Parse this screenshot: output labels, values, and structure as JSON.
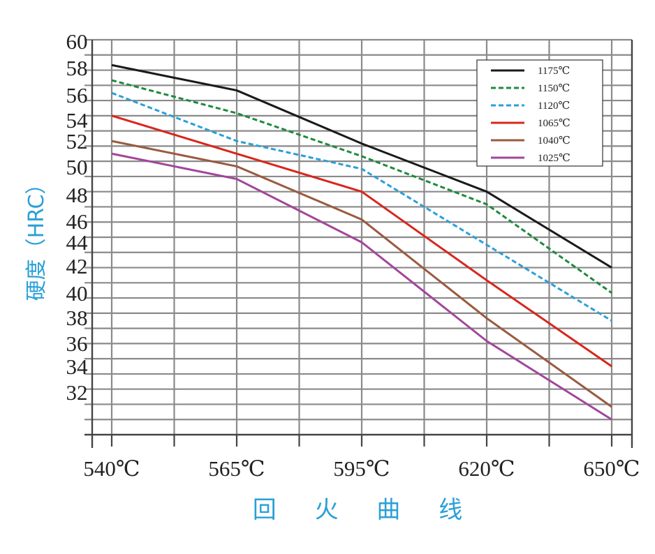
{
  "chart_data": {
    "type": "line",
    "xlabel": "回 火 曲 线",
    "ylabel": "硬度（HRC）",
    "categories": [
      "540℃",
      "565℃",
      "595℃",
      "620℃",
      "650℃"
    ],
    "y_ticks": [
      "60",
      "58",
      "56",
      "54",
      "52",
      "50",
      "48",
      "46",
      "44",
      "42",
      "40",
      "38",
      "36",
      "34",
      "32"
    ],
    "ylim": [
      28.8,
      60
    ],
    "grid": true,
    "legend_position": "top-right",
    "series": [
      {
        "name": "1175℃",
        "color": "#1a1a1a",
        "dash": "solid",
        "values": [
          58.0,
          56.0,
          51.8,
          48.0,
          42.0
        ]
      },
      {
        "name": "1150℃",
        "color": "#1e8a3e",
        "dash": "dashed",
        "values": [
          56.8,
          54.2,
          50.8,
          47.0,
          40.0
        ]
      },
      {
        "name": "1120℃",
        "color": "#2a9fd8",
        "dash": "dashed",
        "values": [
          55.8,
          52.0,
          49.8,
          43.8,
          37.8
        ]
      },
      {
        "name": "1065℃",
        "color": "#d8261c",
        "dash": "solid",
        "values": [
          54.0,
          51.0,
          48.0,
          41.0,
          34.2
        ]
      },
      {
        "name": "1040℃",
        "color": "#9a5a40",
        "dash": "solid",
        "values": [
          52.0,
          50.0,
          45.8,
          38.0,
          31.0
        ]
      },
      {
        "name": "1025℃",
        "color": "#a2469a",
        "dash": "solid",
        "values": [
          51.0,
          49.0,
          44.0,
          36.2,
          30.0
        ]
      }
    ]
  }
}
